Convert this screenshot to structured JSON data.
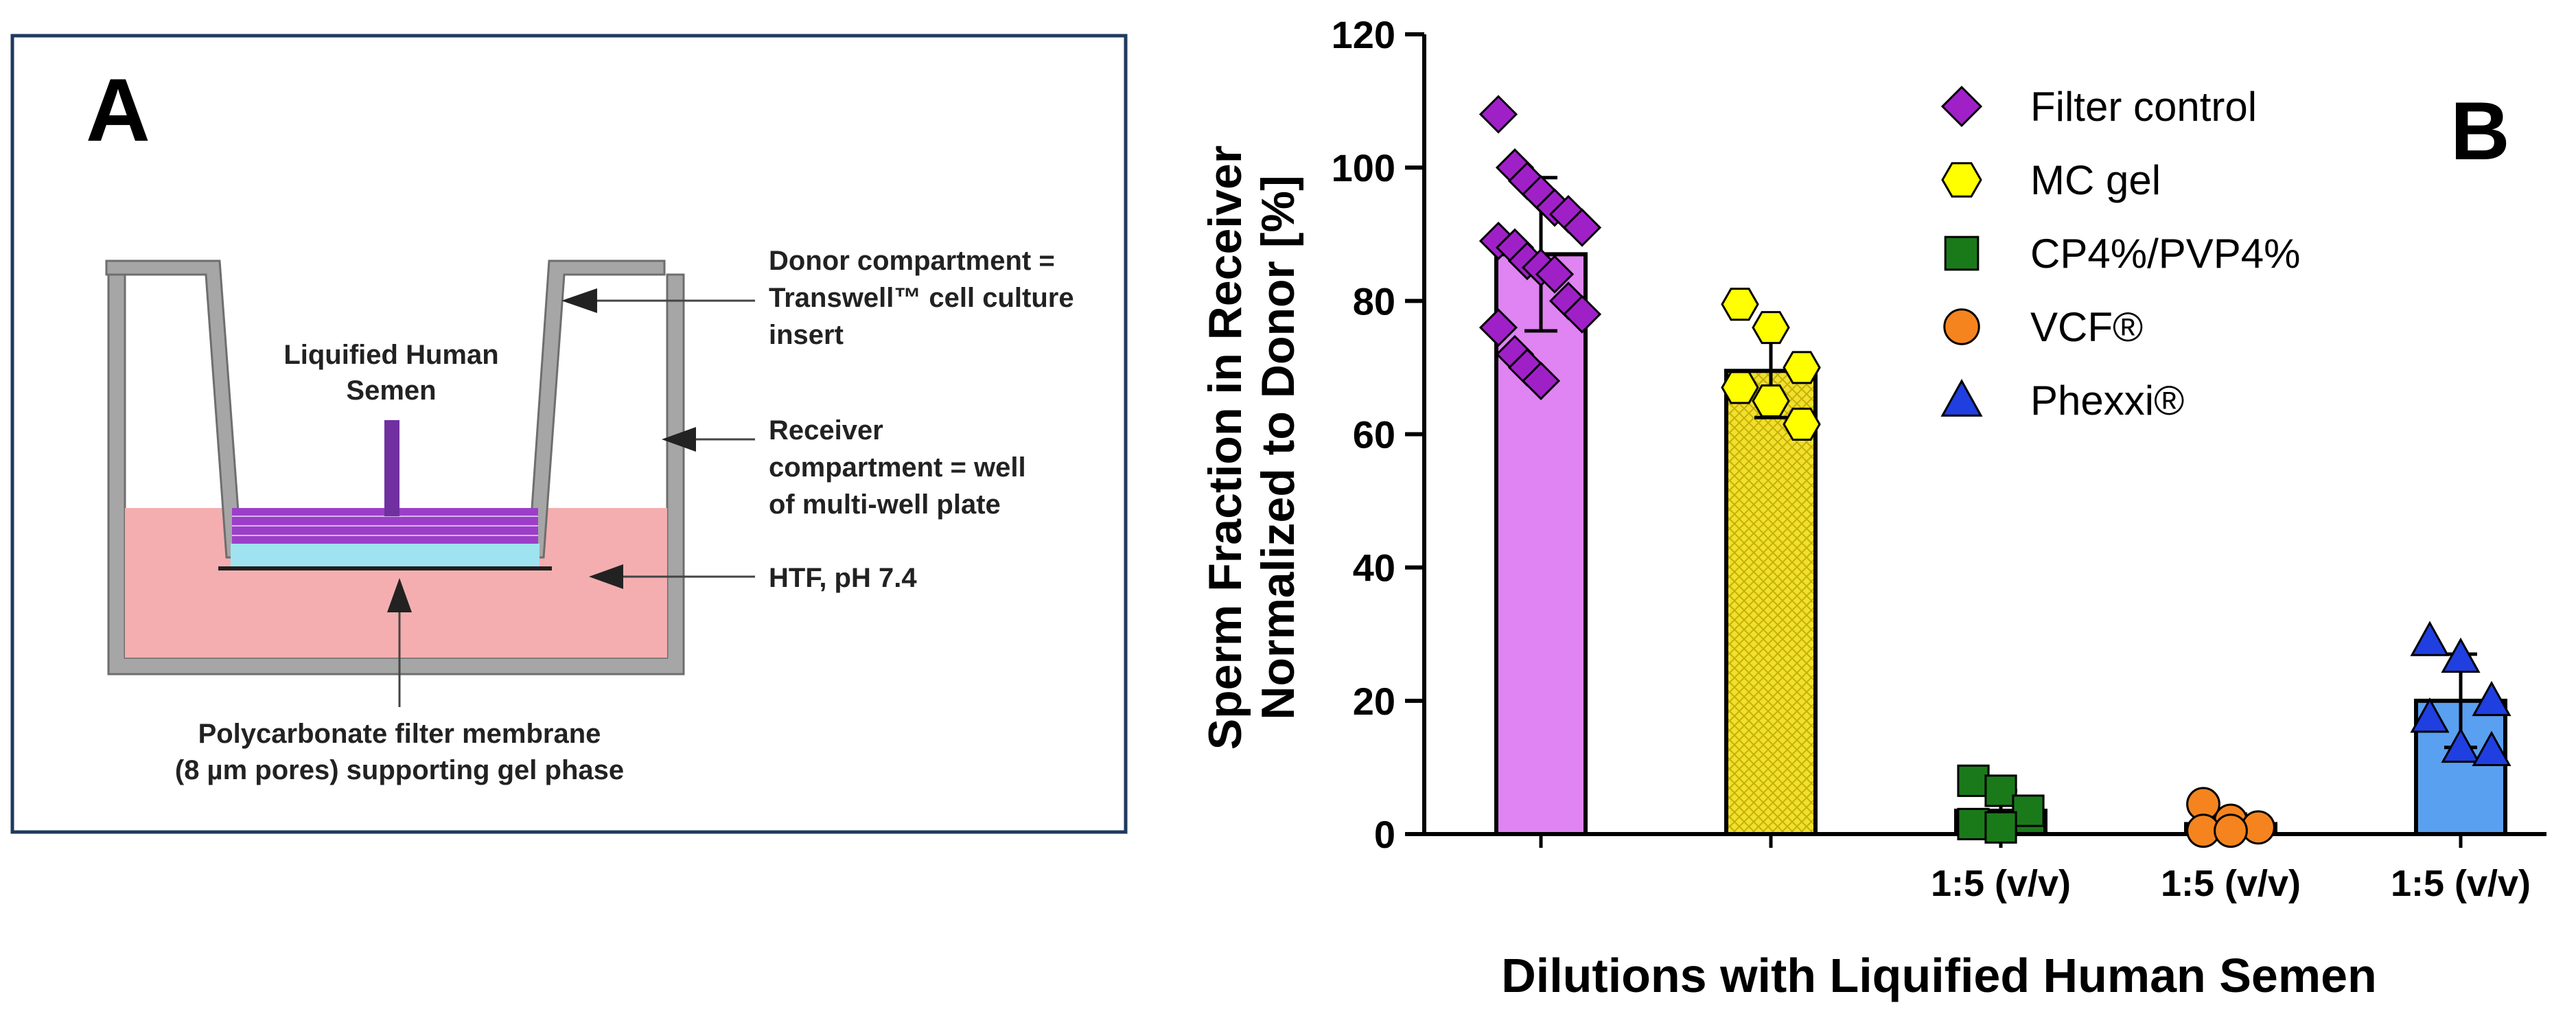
{
  "panel_a": {
    "letter": "A",
    "semen_label_line1": "Liquified Human",
    "semen_label_line2": "Semen",
    "donor_line1": "Donor compartment =",
    "donor_line2": "Transwell™ cell culture",
    "donor_line3": "insert",
    "receiver_line1": "Receiver",
    "receiver_line2": "compartment = well",
    "receiver_line3": "of multi-well plate",
    "htf_label": "HTF, pH 7.4",
    "membrane_line1": "Polycarbonate filter membrane",
    "membrane_line2": "(8 µm pores) supporting gel phase",
    "colors": {
      "frame": "#1f3a5f",
      "well_wall": "#a6a6a6",
      "medium": "#f4aeb0",
      "gel": "#9b3fc8",
      "membrane_zone": "#9fe3f0",
      "semen_bar": "#7030a0"
    }
  },
  "panel_b": {
    "letter": "B",
    "ylabel_line1": "Sperm Fraction in Receiver",
    "ylabel_line2": "Normalized to Donor [%]",
    "xlabel": "Dilutions with Liquified Human Semen"
  },
  "chart_data": {
    "type": "bar",
    "categories": [
      "",
      "",
      "1:5 (v/v)",
      "1:5 (v/v)",
      "1:5 (v/v)"
    ],
    "ylim": [
      0,
      120
    ],
    "yticks": [
      0,
      20,
      40,
      60,
      80,
      100,
      120
    ],
    "ytick_labels": [
      "0",
      "20",
      "40",
      "60",
      "80",
      "100",
      "120"
    ],
    "legend_position": "top-right",
    "grid": false,
    "series": [
      {
        "name": "Filter control",
        "marker": "diamond",
        "color": "#a020c8",
        "bar_color": "#df84f2",
        "mean": 87,
        "sd": 11.5,
        "points": [
          108,
          100,
          98,
          96,
          94,
          93,
          91,
          89,
          88,
          86,
          85,
          84,
          80,
          78,
          76,
          72,
          70,
          68
        ]
      },
      {
        "name": "MC gel",
        "marker": "hexagon",
        "color": "#ffff00",
        "bar_color": "#f0e030",
        "mean": 69.5,
        "sd": 7,
        "points": [
          79.5,
          76,
          70,
          67,
          65,
          61.5
        ]
      },
      {
        "name": "CP4%/PVP4%",
        "marker": "square",
        "color": "#1a7a1a",
        "bar_color": "#1a7a1a",
        "mean": 3.5,
        "sd": 3,
        "points": [
          8,
          6.5,
          3.5,
          1.5,
          1
        ]
      },
      {
        "name": "VCF®",
        "marker": "circle",
        "color": "#f5841f",
        "bar_color": "#f5841f",
        "mean": 1.5,
        "sd": 1.5,
        "points": [
          4.5,
          2,
          1,
          0.5,
          0.5
        ]
      },
      {
        "name": "Phexxi®",
        "marker": "triangle",
        "color": "#1f3fe0",
        "bar_color": "#5aa0f0",
        "mean": 20,
        "sd": 7,
        "points": [
          29,
          26.5,
          20,
          17.5,
          13,
          12.5
        ]
      }
    ]
  }
}
